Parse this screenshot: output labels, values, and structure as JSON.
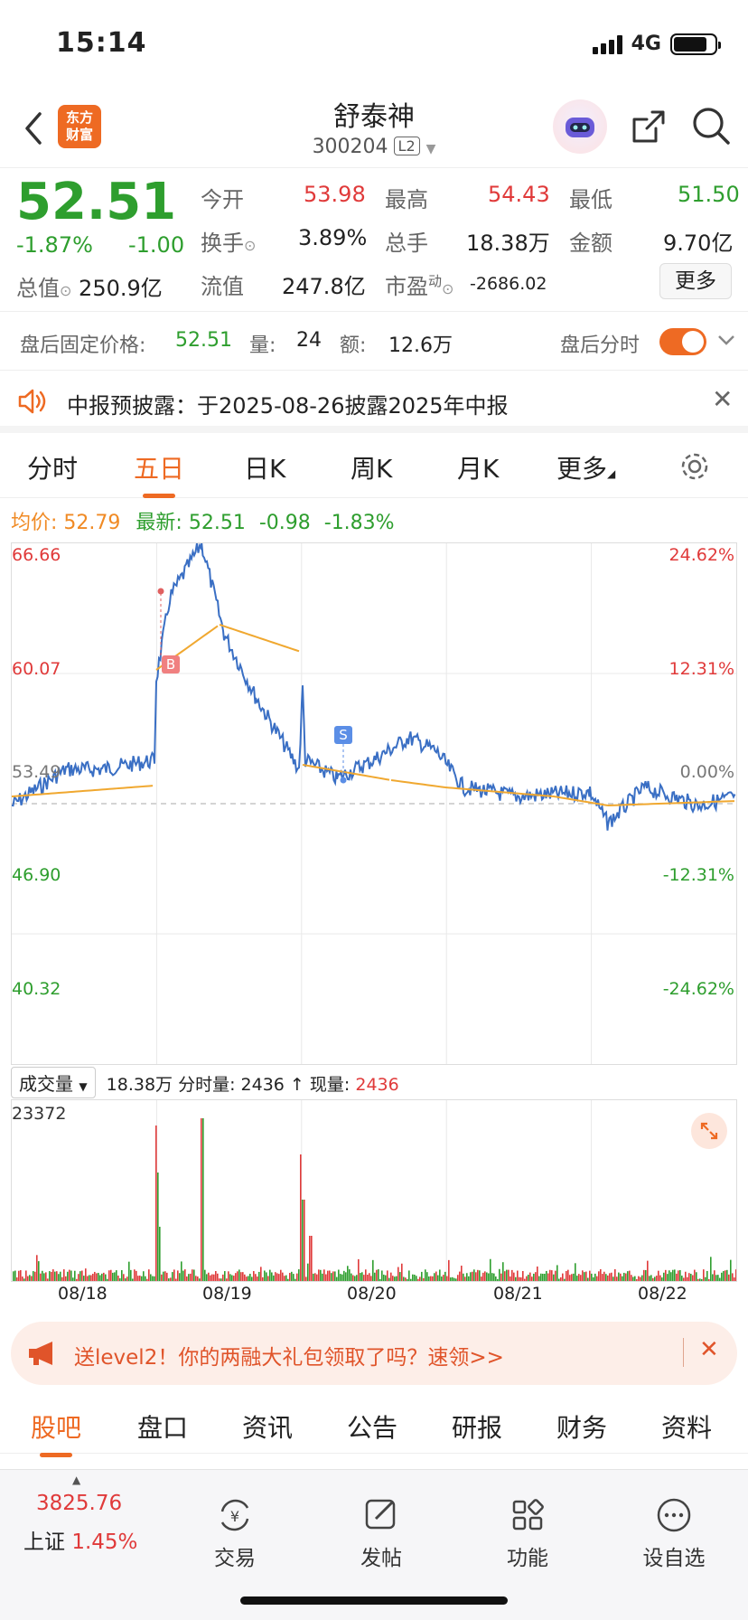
{
  "status": {
    "time": "15:14",
    "network": "4G"
  },
  "nav": {
    "logo_line1": "东方",
    "logo_line2": "财富",
    "title": "舒泰神",
    "code": "300204",
    "level": "L2"
  },
  "quote": {
    "price": "52.51",
    "change_pct": "-1.87%",
    "change": "-1.00",
    "open_label": "今开",
    "open": "53.98",
    "high_label": "最高",
    "high": "54.43",
    "low_label": "最低",
    "low": "51.50",
    "turnover_label": "换手",
    "turnover": "3.89%",
    "volume_label": "总手",
    "volume": "18.38万",
    "amount_label": "金额",
    "amount": "9.70亿",
    "mcap_label": "总值",
    "mcap": "250.9亿",
    "float_label": "流值",
    "float": "247.8亿",
    "pe_label": "市盈",
    "pe_sup": "动",
    "pe": "-2686.02",
    "more": "更多"
  },
  "after_hours": {
    "label": "盘后固定价格:",
    "price": "52.51",
    "vol_label": "量:",
    "vol": "24",
    "amt_label": "额:",
    "amt": "12.6万",
    "toggle_label": "盘后分时"
  },
  "notice": {
    "text": "中报预披露：于2025-08-26披露2025年中报"
  },
  "tabs": [
    "分时",
    "五日",
    "日K",
    "周K",
    "月K",
    "更多"
  ],
  "legend": {
    "avg_label": "均价:",
    "avg": "52.79",
    "latest_label": "最新:",
    "latest": "52.51",
    "chg": "-0.98",
    "pct": "-1.83%"
  },
  "chart_data": {
    "type": "line",
    "title": "",
    "x": [
      "08/18",
      "08/19",
      "08/20",
      "08/21",
      "08/22"
    ],
    "y_left": [
      "66.66",
      "60.07",
      "53.49",
      "46.90",
      "40.32"
    ],
    "y_right": [
      "24.62%",
      "12.31%",
      "0.00%",
      "-12.31%",
      "-24.62%"
    ],
    "ylim": [
      40.32,
      66.66
    ],
    "baseline": 53.49,
    "markers": [
      {
        "label": "B",
        "day": "08/19"
      },
      {
        "label": "S",
        "day": "08/20"
      }
    ],
    "series": []
  },
  "volume": {
    "selector": "成交量",
    "total": "18.38万",
    "minute_label": "分时量:",
    "minute": "2436",
    "now_label": "现量:",
    "now": "2436",
    "max": "23372"
  },
  "banner": {
    "text": "送level2！你的两融大礼包领取了吗？速领>>"
  },
  "stock_tabs": [
    "股吧",
    "盘口",
    "资讯",
    "公告",
    "研报",
    "财务",
    "资料"
  ],
  "bottom": {
    "index_value": "3825.76",
    "index_name": "上证",
    "index_pct": "1.45%",
    "trade": "交易",
    "post": "发帖",
    "func": "功能",
    "watch": "设自选"
  },
  "colors": {
    "accent": "#ee6a23",
    "up": "#e03a3a",
    "down": "#2e9e2e",
    "line": "#3a6fc4",
    "avg": "#f0a830"
  }
}
